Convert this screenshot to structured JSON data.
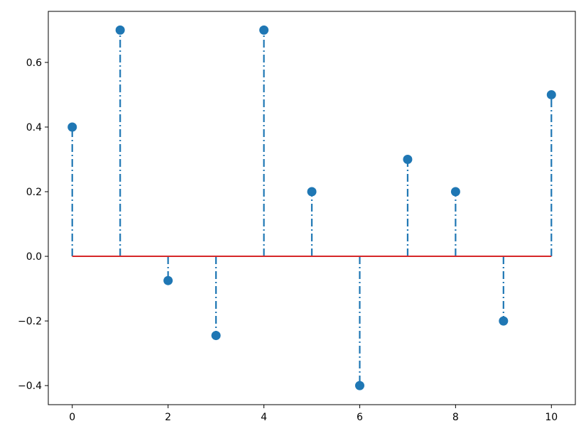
{
  "chart_data": {
    "type": "stem",
    "title": "",
    "xlabel": "",
    "ylabel": "",
    "x": [
      0,
      1,
      2,
      3,
      4,
      5,
      6,
      7,
      8,
      9,
      10
    ],
    "y": [
      0.4,
      0.7,
      -0.075,
      -0.245,
      0.7,
      0.2,
      -0.4,
      0.3,
      0.2,
      -0.2,
      0.5
    ],
    "xlim": [
      -0.5,
      10.5
    ],
    "ylim": [
      -0.459,
      0.758
    ],
    "xticks": [
      "0",
      "2",
      "4",
      "6",
      "8",
      "10"
    ],
    "yticks": [
      "−0.4",
      "−0.2",
      "0.0",
      "0.2",
      "0.4",
      "0.6"
    ],
    "baseline": 0,
    "grid": false,
    "colors": {
      "stem": "#1f77b4",
      "marker": "#1f77b4",
      "baseline": "#d62728"
    },
    "linestyle": "dashdot"
  }
}
